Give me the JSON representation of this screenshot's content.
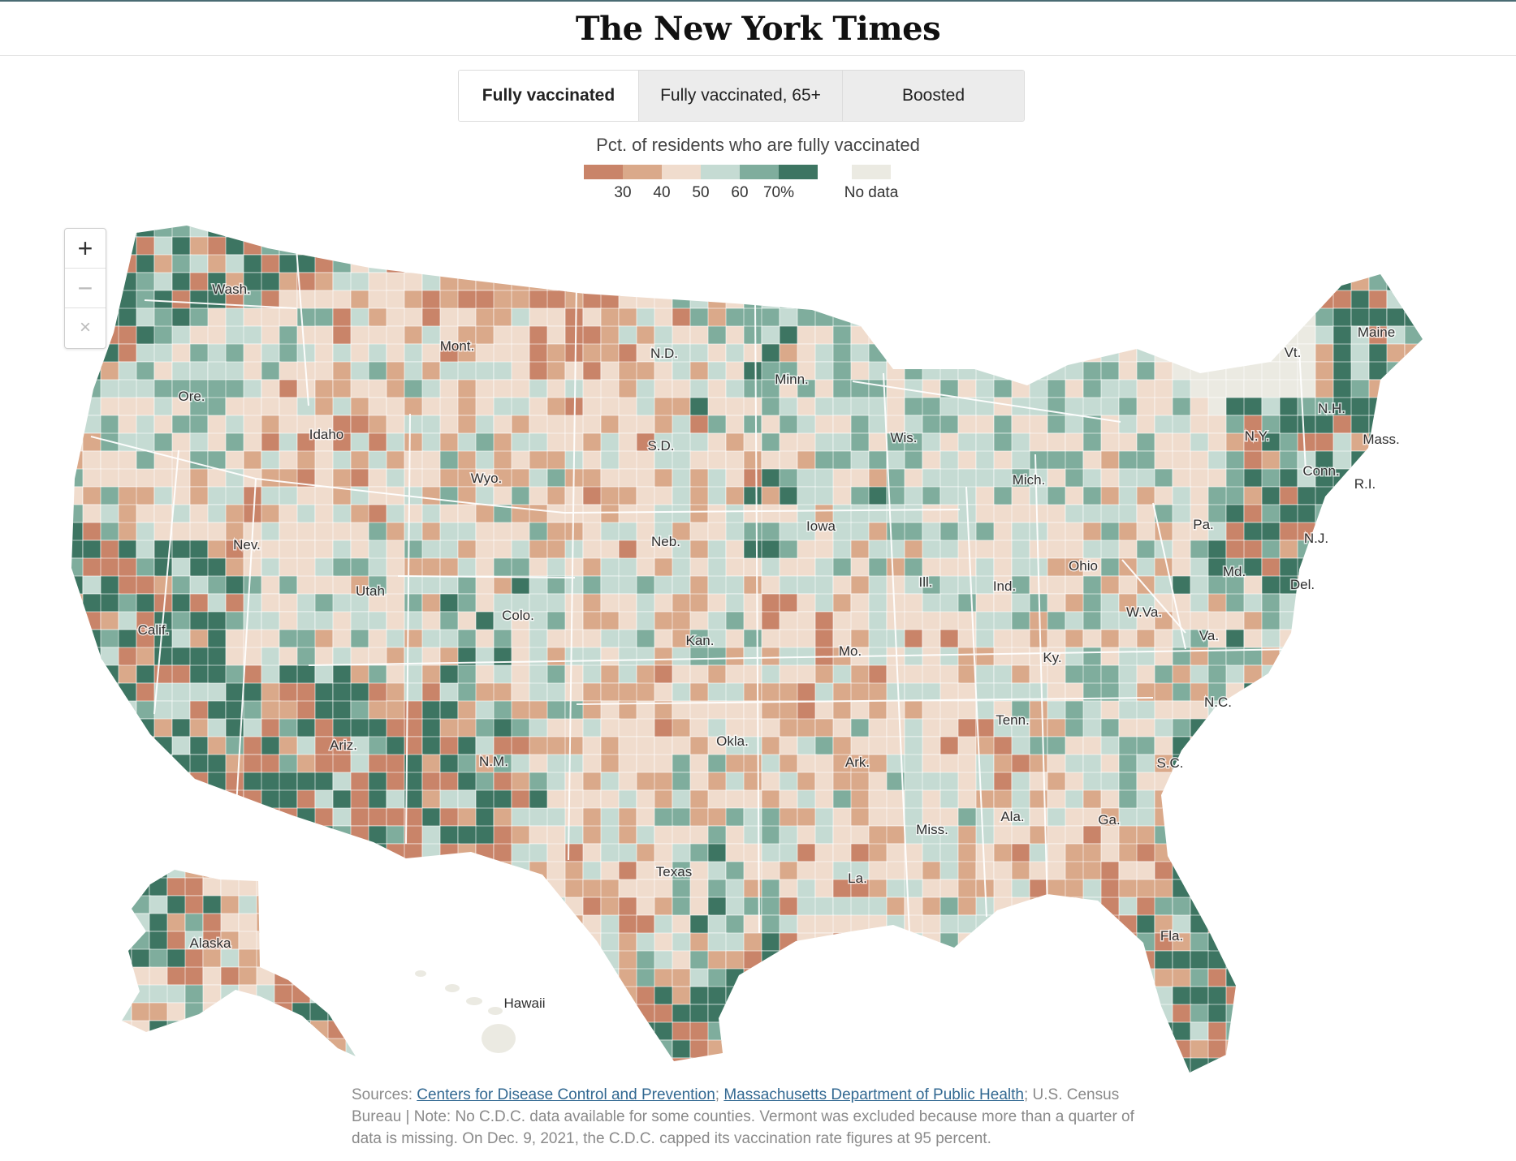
{
  "masthead": {
    "title": "The New York Times"
  },
  "tabs": [
    {
      "label": "Fully vaccinated",
      "active": true
    },
    {
      "label": "Fully vaccinated, 65+",
      "active": false
    },
    {
      "label": "Boosted",
      "active": false
    }
  ],
  "legend": {
    "title": "Pct. of residents who are fully vaccinated",
    "colors": [
      "#c98469",
      "#daa98a",
      "#f0dccd",
      "#c5dbd3",
      "#7fad9d",
      "#3d7562"
    ],
    "ticks": [
      "30",
      "40",
      "50",
      "60",
      "70%"
    ],
    "no_data_label": "No data",
    "no_data_color": "#ebeae2"
  },
  "zoom": {
    "in": "+",
    "out": "−",
    "reset": "×"
  },
  "map": {
    "state_labels": [
      "Wash.",
      "Ore.",
      "Idaho",
      "Mont.",
      "N.D.",
      "Minn.",
      "Wyo.",
      "S.D.",
      "Wis.",
      "Mich.",
      "Nev.",
      "Calif.",
      "Utah",
      "Colo.",
      "Neb.",
      "Iowa",
      "Ill.",
      "Ind.",
      "Ohio",
      "Pa.",
      "N.Y.",
      "Vt.",
      "N.H.",
      "Maine",
      "Mass.",
      "Conn.",
      "R.I.",
      "N.J.",
      "Del.",
      "Md.",
      "W.Va.",
      "Va.",
      "Ky.",
      "Kan.",
      "Mo.",
      "Ariz.",
      "N.M.",
      "Okla.",
      "Ark.",
      "Tenn.",
      "N.C.",
      "S.C.",
      "Ga.",
      "Ala.",
      "Miss.",
      "La.",
      "Texas",
      "Fla.",
      "Alaska",
      "Hawaii"
    ]
  },
  "sources": {
    "prefix": "Sources: ",
    "link1": "Centers for Disease Control and Prevention",
    "sep": "; ",
    "link2": "Massachusetts Department of Public Health",
    "rest": "; U.S. Census Bureau | Note: No C.D.C. data available for some counties. Vermont was excluded because more than a quarter of data is missing. On Dec. 9, 2021, the C.D.C. capped its vaccination rate figures at 95 percent."
  }
}
